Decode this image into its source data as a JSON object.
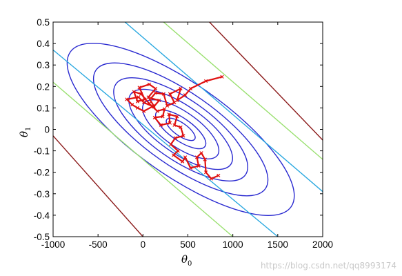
{
  "chart_data": {
    "type": "line",
    "title": "",
    "xlabel": {
      "symbol": "θ",
      "subscript": "0"
    },
    "ylabel": {
      "symbol": "θ",
      "subscript": "1"
    },
    "xlim": [
      -1000,
      2000
    ],
    "ylim": [
      -0.5,
      0.5
    ],
    "xticks": [
      -1000,
      -500,
      0,
      500,
      1000,
      1500,
      2000
    ],
    "xtick_labels": [
      "-1000",
      "-500",
      "0",
      "500",
      "1000",
      "1500",
      "2000"
    ],
    "yticks": [
      0.5,
      0.4,
      0.3,
      0.2,
      0.1,
      0,
      -0.1,
      -0.2,
      -0.3,
      -0.4,
      -0.5
    ],
    "ytick_labels": [
      "0.5",
      "0.4",
      "0.3",
      "0.2",
      "0.1",
      "0",
      "-0.1",
      "-0.2",
      "-0.3",
      "-0.4",
      "-0.5"
    ],
    "grid": false,
    "contours": {
      "center": [
        420,
        0.0
      ],
      "orientation": "tilted down-right",
      "levels": [
        {
          "a": 190,
          "b": 0.03,
          "color": "#2a2ad0"
        },
        {
          "a": 330,
          "b": 0.052,
          "color": "#2a2ad0"
        },
        {
          "a": 500,
          "b": 0.082,
          "color": "#2a2ad0"
        },
        {
          "a": 680,
          "b": 0.11,
          "color": "#2a2ad0"
        },
        {
          "a": 880,
          "b": 0.14,
          "color": "#2a2ad0"
        },
        {
          "a": 1150,
          "b": 0.17,
          "color": "#2a2ad0"
        },
        {
          "a": 1500,
          "b": 0.215,
          "color": "#2a2ad0"
        }
      ],
      "lines": [
        {
          "points": [
            [
              -1000,
              0.37
            ],
            [
              1500,
              -0.5
            ]
          ],
          "color": "#2aa8e0"
        },
        {
          "points": [
            [
              -200,
              0.5
            ],
            [
              2000,
              -0.29
            ]
          ],
          "color": "#2aa8e0"
        },
        {
          "points": [
            [
              -1000,
              0.22
            ],
            [
              1000,
              -0.5
            ]
          ],
          "color": "#9ae070"
        },
        {
          "points": [
            [
              230,
              0.5
            ],
            [
              2000,
              -0.14
            ]
          ],
          "color": "#9ae070"
        },
        {
          "points": [
            [
              -1000,
              -0.03
            ],
            [
              0,
              -0.5
            ]
          ],
          "color": "#8b1a1a"
        },
        {
          "points": [
            [
              740,
              0.5
            ],
            [
              2000,
              -0.05
            ]
          ],
          "color": "#8b1a1a"
        }
      ]
    },
    "series": [
      {
        "color": "#e01010",
        "marker": "x",
        "points": [
          [
            880,
            0.245
          ],
          [
            700,
            0.225
          ],
          [
            530,
            0.19
          ],
          [
            470,
            0.16
          ],
          [
            380,
            0.135
          ],
          [
            420,
            0.19
          ],
          [
            300,
            0.165
          ],
          [
            350,
            0.125
          ],
          [
            270,
            0.11
          ],
          [
            230,
            0.165
          ],
          [
            140,
            0.17
          ],
          [
            90,
            0.145
          ],
          [
            180,
            0.135
          ],
          [
            120,
            0.105
          ],
          [
            10,
            0.125
          ],
          [
            -50,
            0.15
          ],
          [
            -180,
            0.14
          ],
          [
            -120,
            0.115
          ],
          [
            -60,
            0.1
          ],
          [
            10,
            0.085
          ],
          [
            120,
            0.11
          ],
          [
            60,
            0.15
          ],
          [
            140,
            0.19
          ],
          [
            70,
            0.21
          ],
          [
            -40,
            0.195
          ],
          [
            20,
            0.14
          ],
          [
            -60,
            0.13
          ],
          [
            -100,
            0.175
          ],
          [
            -20,
            0.165
          ],
          [
            70,
            0.12
          ],
          [
            160,
            0.085
          ],
          [
            240,
            0.095
          ],
          [
            220,
            0.06
          ],
          [
            130,
            0.055
          ],
          [
            200,
            0.02
          ],
          [
            300,
            0.03
          ],
          [
            290,
            0.07
          ],
          [
            380,
            0.06
          ],
          [
            350,
            0.02
          ],
          [
            420,
            0.01
          ],
          [
            450,
            -0.03
          ],
          [
            360,
            -0.04
          ],
          [
            310,
            -0.07
          ],
          [
            390,
            -0.1
          ],
          [
            340,
            -0.12
          ],
          [
            440,
            -0.15
          ],
          [
            470,
            -0.13
          ],
          [
            530,
            -0.18
          ],
          [
            620,
            -0.17
          ],
          [
            600,
            -0.13
          ],
          [
            650,
            -0.11
          ],
          [
            690,
            -0.14
          ],
          [
            700,
            -0.2
          ],
          [
            760,
            -0.23
          ],
          [
            840,
            -0.215
          ]
        ]
      }
    ]
  },
  "watermark": "https://blog.csdn.net/qq8993174"
}
